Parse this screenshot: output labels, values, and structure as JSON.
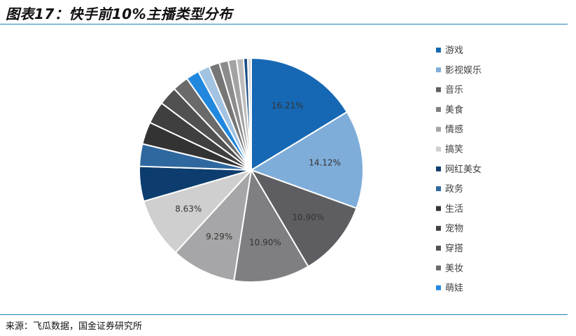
{
  "title": "图表17：快手前10%主播类型分布",
  "source": "来源：飞瓜数据，国金证券研究所",
  "colors": {
    "accent": "#1f7fb5"
  },
  "chart_data": {
    "type": "pie",
    "legend_position": "right",
    "slices": [
      {
        "label": "游戏",
        "value": 16.21,
        "value_label": "16.21%",
        "color": "#1668b4"
      },
      {
        "label": "影视娱乐",
        "value": 14.12,
        "value_label": "14.12%",
        "color": "#7fadd9"
      },
      {
        "label": "音乐",
        "value": 10.9,
        "value_label": "10.90%",
        "color": "#5e5e62"
      },
      {
        "label": "美食",
        "value": 10.9,
        "value_label": "10.90%",
        "color": "#7f7f82"
      },
      {
        "label": "情感",
        "value": 9.29,
        "value_label": "9.29%",
        "color": "#a6a6a8"
      },
      {
        "label": "搞笑",
        "value": 8.63,
        "value_label": "8.63%",
        "color": "#cfcfcf"
      },
      {
        "label": "网红美女",
        "value": 5.0,
        "value_label": "",
        "color": "#0c3d6e"
      },
      {
        "label": "政务",
        "value": 3.2,
        "value_label": "",
        "color": "#2f689f"
      },
      {
        "label": "生活",
        "value": 3.2,
        "value_label": "",
        "color": "#333333"
      },
      {
        "label": "宠物",
        "value": 3.2,
        "value_label": "",
        "color": "#3f3f3f"
      },
      {
        "label": "穿搭",
        "value": 2.7,
        "value_label": "",
        "color": "#515151"
      },
      {
        "label": "美妆",
        "value": 2.3,
        "value_label": "",
        "color": "#6a6a6a"
      },
      {
        "label": "萌娃",
        "value": 1.9,
        "value_label": "",
        "color": "#2188de"
      },
      {
        "label": "",
        "value": 1.7,
        "value_label": "",
        "color": "#a2c3e2"
      },
      {
        "label": "",
        "value": 1.5,
        "value_label": "",
        "color": "#767676"
      },
      {
        "label": "",
        "value": 1.3,
        "value_label": "",
        "color": "#8c8c8c"
      },
      {
        "label": "",
        "value": 1.2,
        "value_label": "",
        "color": "#a3a3a3"
      },
      {
        "label": "",
        "value": 1.0,
        "value_label": "",
        "color": "#bdbdbd"
      },
      {
        "label": "",
        "value": 0.6,
        "value_label": "",
        "color": "#1a4e86"
      },
      {
        "label": "",
        "value": 0.5,
        "value_label": "",
        "color": "#d8d8d8"
      }
    ]
  }
}
